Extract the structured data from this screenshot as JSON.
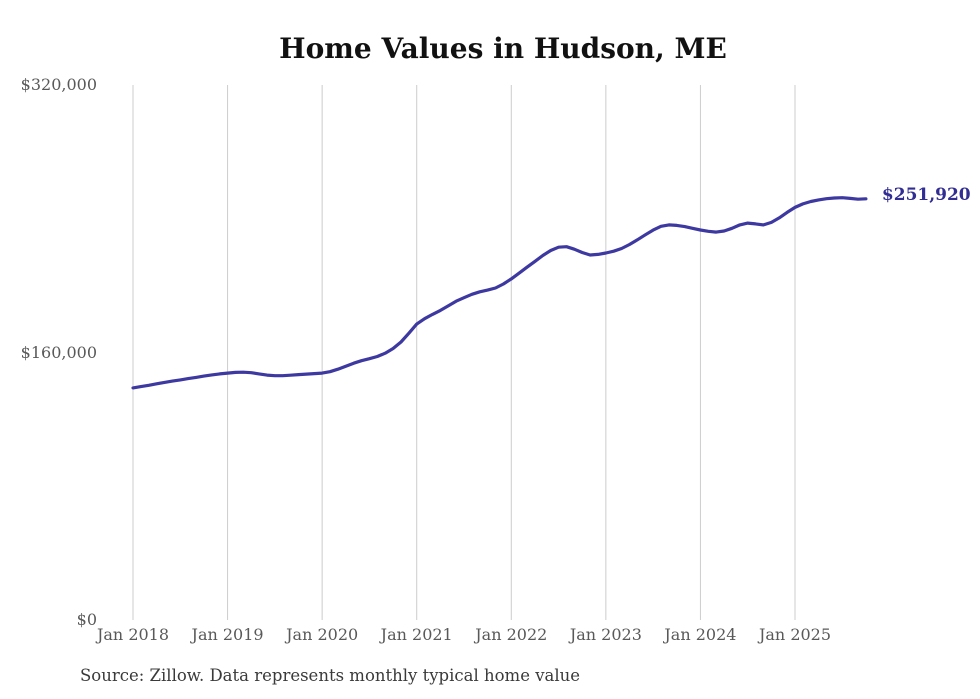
{
  "chart_data": {
    "type": "line",
    "title": "Home Values in Hudson, ME",
    "source": "Source: Zillow. Data represents monthly typical home value",
    "end_label": "$251,920",
    "final_value": 251920,
    "series_name": "Monthly typical home value",
    "legend": "none",
    "grid": "vertical-only",
    "ylim": [
      0,
      320000
    ],
    "y_ticks": [
      {
        "label": "$0",
        "value": 0
      },
      {
        "label": "$160,000",
        "value": 160000
      },
      {
        "label": "$320,000",
        "value": 320000
      }
    ],
    "x_tick_labels": [
      "Jan 2018",
      "Jan 2019",
      "Jan 2020",
      "Jan 2021",
      "Jan 2022",
      "Jan 2023",
      "Jan 2024",
      "Jan 2025"
    ],
    "x_tick_month_indices": [
      0,
      12,
      24,
      36,
      48,
      60,
      72,
      84
    ],
    "x": [
      "2018-01",
      "2018-02",
      "2018-03",
      "2018-04",
      "2018-05",
      "2018-06",
      "2018-07",
      "2018-08",
      "2018-09",
      "2018-10",
      "2018-11",
      "2018-12",
      "2019-01",
      "2019-02",
      "2019-03",
      "2019-04",
      "2019-05",
      "2019-06",
      "2019-07",
      "2019-08",
      "2019-09",
      "2019-10",
      "2019-11",
      "2019-12",
      "2020-01",
      "2020-02",
      "2020-03",
      "2020-04",
      "2020-05",
      "2020-06",
      "2020-07",
      "2020-08",
      "2020-09",
      "2020-10",
      "2020-11",
      "2020-12",
      "2021-01",
      "2021-02",
      "2021-03",
      "2021-04",
      "2021-05",
      "2021-06",
      "2021-07",
      "2021-08",
      "2021-09",
      "2021-10",
      "2021-11",
      "2021-12",
      "2022-01",
      "2022-02",
      "2022-03",
      "2022-04",
      "2022-05",
      "2022-06",
      "2022-07",
      "2022-08",
      "2022-09",
      "2022-10",
      "2022-11",
      "2022-12",
      "2023-01",
      "2023-02",
      "2023-03",
      "2023-04",
      "2023-05",
      "2023-06",
      "2023-07",
      "2023-08",
      "2023-09",
      "2023-10",
      "2023-11",
      "2023-12",
      "2024-01",
      "2024-02",
      "2024-03",
      "2024-04",
      "2024-05",
      "2024-06",
      "2024-07",
      "2024-08",
      "2024-09",
      "2024-10",
      "2024-11",
      "2024-12",
      "2025-01",
      "2025-02",
      "2025-03",
      "2025-04",
      "2025-05",
      "2025-06",
      "2025-07",
      "2025-08",
      "2025-09",
      "2025-10"
    ],
    "values": [
      138800,
      139600,
      140400,
      141300,
      142100,
      142900,
      143600,
      144400,
      145100,
      145900,
      146600,
      147200,
      147700,
      148100,
      148200,
      147900,
      147200,
      146500,
      146100,
      146100,
      146400,
      146800,
      147100,
      147400,
      147700,
      148500,
      150000,
      151800,
      153600,
      155100,
      156300,
      157600,
      159600,
      162400,
      166300,
      171500,
      177000,
      180200,
      182800,
      185200,
      187900,
      190700,
      192800,
      194800,
      196300,
      197300,
      198600,
      201000,
      204000,
      207500,
      211000,
      214500,
      218000,
      221000,
      223000,
      223300,
      221800,
      219800,
      218300,
      218700,
      219500,
      220600,
      222200,
      224600,
      227400,
      230400,
      233200,
      235500,
      236300,
      236000,
      235300,
      234300,
      233300,
      232500,
      232000,
      232700,
      234300,
      236300,
      237400,
      236900,
      236300,
      237800,
      240500,
      243800,
      246800,
      248900,
      250300,
      251300,
      252000,
      252400,
      252600,
      252200,
      251700,
      251920
    ],
    "colors": {
      "line": "#3d39a1",
      "end_label": "#312d93",
      "grid": "#cccccc",
      "tick_text": "#595959",
      "title_text": "#111111",
      "source_text": "#3a3a3a",
      "background": "#ffffff"
    }
  }
}
